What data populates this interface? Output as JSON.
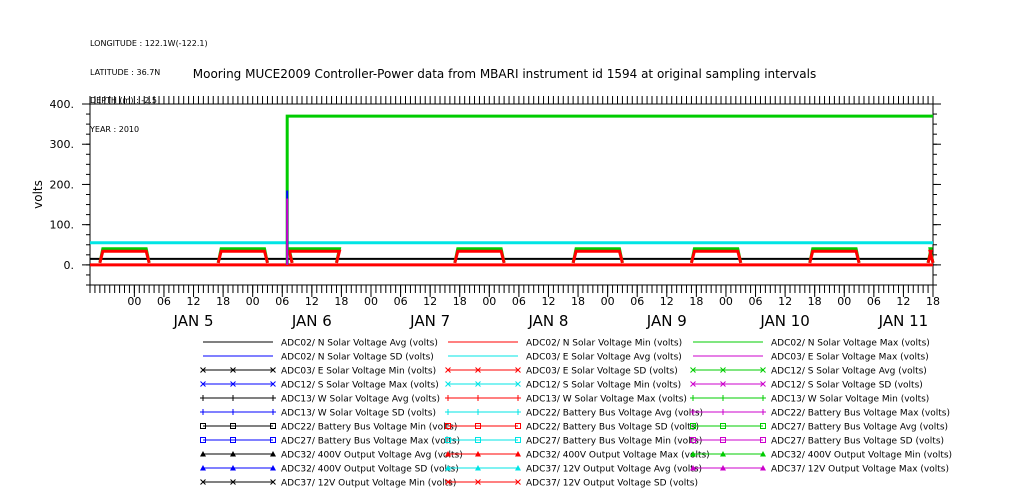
{
  "meta": {
    "longitude": "LONGITUDE : 122.1W(-122.1)",
    "latitude": "LATITUDE : 36.7N",
    "depth": "DEPTH (m) : -2.5",
    "year": "YEAR : 2010"
  },
  "chart_data": {
    "type": "line",
    "title": "Mooring MUCE2009 Controller-Power data from MBARI instrument id 1594 at original sampling intervals",
    "ylabel": "volts",
    "xlabel": "",
    "ylim": [
      -50,
      400
    ],
    "yticks": [
      0,
      100,
      200,
      300,
      400
    ],
    "ytick_labels": [
      "0.",
      "100.",
      "200.",
      "300.",
      "400."
    ],
    "xlim_hours": [
      -9,
      162
    ],
    "hour_ticks": [
      {
        "h": 0,
        "label": "00"
      },
      {
        "h": 6,
        "label": "06"
      },
      {
        "h": 12,
        "label": "12"
      },
      {
        "h": 18,
        "label": "18"
      },
      {
        "h": 24,
        "label": "00"
      },
      {
        "h": 30,
        "label": "06"
      },
      {
        "h": 36,
        "label": "12"
      },
      {
        "h": 42,
        "label": "18"
      },
      {
        "h": 48,
        "label": "00"
      },
      {
        "h": 54,
        "label": "06"
      },
      {
        "h": 60,
        "label": "12"
      },
      {
        "h": 66,
        "label": "18"
      },
      {
        "h": 72,
        "label": "00"
      },
      {
        "h": 78,
        "label": "06"
      },
      {
        "h": 84,
        "label": "12"
      },
      {
        "h": 90,
        "label": "18"
      },
      {
        "h": 96,
        "label": "00"
      },
      {
        "h": 102,
        "label": "06"
      },
      {
        "h": 108,
        "label": "12"
      },
      {
        "h": 114,
        "label": "18"
      },
      {
        "h": 120,
        "label": "00"
      },
      {
        "h": 126,
        "label": "06"
      },
      {
        "h": 132,
        "label": "12"
      },
      {
        "h": 138,
        "label": "18"
      },
      {
        "h": 144,
        "label": "00"
      },
      {
        "h": 150,
        "label": "06"
      },
      {
        "h": 156,
        "label": "12"
      },
      {
        "h": 162,
        "label": "18"
      }
    ],
    "day_labels": [
      {
        "h": 12,
        "label": "JAN   5"
      },
      {
        "h": 36,
        "label": "JAN   6"
      },
      {
        "h": 60,
        "label": "JAN   7"
      },
      {
        "h": 84,
        "label": "JAN   8"
      },
      {
        "h": 108,
        "label": "JAN   9"
      },
      {
        "h": 132,
        "label": "JAN 10"
      },
      {
        "h": 156,
        "label": "JAN 11"
      }
    ],
    "grid": false,
    "legend_position": "bottom",
    "series": [
      {
        "name": "ADC02/ N Solar Voltage Avg (volts)",
        "color": "#000000",
        "marker": "none"
      },
      {
        "name": "ADC02/ N Solar Voltage Min (volts)",
        "color": "#ff0000",
        "marker": "none"
      },
      {
        "name": "ADC02/ N Solar Voltage Max (volts)",
        "color": "#00cc00",
        "marker": "none"
      },
      {
        "name": "ADC02/ N Solar Voltage SD (volts)",
        "color": "#0000ff",
        "marker": "none"
      },
      {
        "name": "ADC03/ E Solar Voltage Avg (volts)",
        "color": "#00e5e5",
        "marker": "none"
      },
      {
        "name": "ADC03/ E Solar Voltage Max (volts)",
        "color": "#cc00cc",
        "marker": "none"
      },
      {
        "name": "ADC03/ E Solar Voltage Min (volts)",
        "color": "#000000",
        "marker": "x"
      },
      {
        "name": "ADC03/ E Solar Voltage SD (volts)",
        "color": "#ff0000",
        "marker": "x"
      },
      {
        "name": "ADC12/ S Solar Voltage Avg (volts)",
        "color": "#00cc00",
        "marker": "x"
      },
      {
        "name": "ADC12/ S Solar Voltage Max (volts)",
        "color": "#0000ff",
        "marker": "x"
      },
      {
        "name": "ADC12/ S Solar Voltage Min (volts)",
        "color": "#00e5e5",
        "marker": "x"
      },
      {
        "name": "ADC12/ S Solar Voltage SD (volts)",
        "color": "#cc00cc",
        "marker": "x"
      },
      {
        "name": "ADC13/ W Solar Voltage Avg (volts)",
        "color": "#000000",
        "marker": "plus"
      },
      {
        "name": "ADC13/ W Solar Voltage Max (volts)",
        "color": "#ff0000",
        "marker": "plus"
      },
      {
        "name": "ADC13/ W Solar Voltage Min (volts)",
        "color": "#00cc00",
        "marker": "plus"
      },
      {
        "name": "ADC13/ W Solar Voltage SD (volts)",
        "color": "#0000ff",
        "marker": "plus"
      },
      {
        "name": "ADC22/ Battery Bus Voltage Avg (volts)",
        "color": "#00e5e5",
        "marker": "plus"
      },
      {
        "name": "ADC22/ Battery Bus Voltage Max (volts)",
        "color": "#cc00cc",
        "marker": "plus"
      },
      {
        "name": "ADC22/ Battery Bus Voltage Min (volts)",
        "color": "#000000",
        "marker": "square"
      },
      {
        "name": "ADC22/ Battery Bus Voltage SD (volts)",
        "color": "#ff0000",
        "marker": "square"
      },
      {
        "name": "ADC27/ Battery Bus Voltage Avg (volts)",
        "color": "#00cc00",
        "marker": "square"
      },
      {
        "name": "ADC27/ Battery Bus Voltage Max (volts)",
        "color": "#0000ff",
        "marker": "square"
      },
      {
        "name": "ADC27/ Battery Bus Voltage Min (volts)",
        "color": "#00e5e5",
        "marker": "square"
      },
      {
        "name": "ADC27/ Battery Bus Voltage SD (volts)",
        "color": "#cc00cc",
        "marker": "square"
      },
      {
        "name": "ADC32/ 400V Output Voltage Avg (volts)",
        "color": "#000000",
        "marker": "triangle"
      },
      {
        "name": "ADC32/ 400V Output Voltage Max (volts)",
        "color": "#ff0000",
        "marker": "triangle"
      },
      {
        "name": "ADC32/ 400V Output Voltage Min (volts)",
        "color": "#00cc00",
        "marker": "triangle"
      },
      {
        "name": "ADC32/ 400V Output Voltage SD (volts)",
        "color": "#0000ff",
        "marker": "triangle"
      },
      {
        "name": "ADC37/ 12V Output Voltage Avg (volts)",
        "color": "#00e5e5",
        "marker": "triangle"
      },
      {
        "name": "ADC37/ 12V Output Voltage Max (volts)",
        "color": "#cc00cc",
        "marker": "triangle"
      },
      {
        "name": "ADC37/ 12V Output Voltage Min (volts)",
        "color": "#000000",
        "marker": "x"
      },
      {
        "name": "ADC37/ 12V Output Voltage SD (volts)",
        "color": "#ff0000",
        "marker": "x"
      }
    ],
    "traces": {
      "high_output": {
        "color": "#00cc00",
        "points": [
          [
            -9,
            null
          ],
          [
            31,
            null
          ],
          [
            31,
            370
          ],
          [
            162,
            370
          ]
        ]
      },
      "level_cyan": {
        "color": "#00e5e5",
        "value": 55
      },
      "level_black": {
        "color": "#000000",
        "value": 15
      },
      "level_red": {
        "color": "#ff0000",
        "value": 0
      },
      "spike_blue": {
        "color": "#0000ff",
        "h": 31,
        "value": 185
      },
      "spike_magenta": {
        "color": "#cc00cc",
        "h": 31,
        "value": 165
      },
      "daytime_bumps": {
        "colors": [
          "#00cc00",
          "#ff0000"
        ],
        "start_hours": [
          -7,
          17,
          41,
          65,
          89,
          113,
          137,
          161
        ],
        "end_hours": [
          3,
          27,
          32,
          75,
          99,
          123,
          147,
          162
        ],
        "value": 40
      }
    }
  }
}
